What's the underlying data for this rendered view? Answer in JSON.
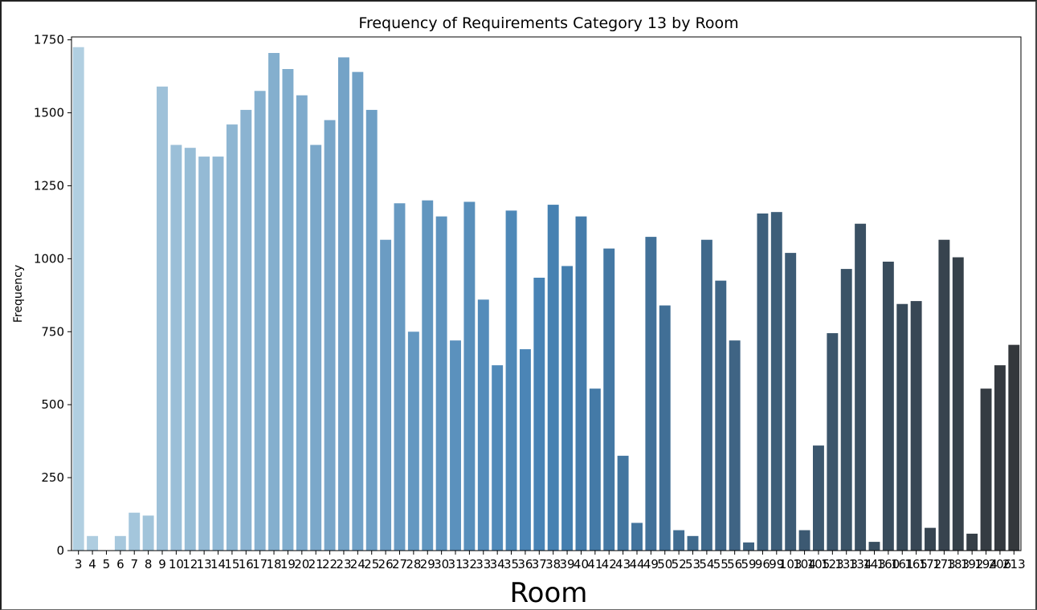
{
  "chart_data": {
    "type": "bar",
    "title": "Frequency of Requirements Category 13 by Room",
    "xlabel": "Room",
    "ylabel": "Frequency",
    "ylim": [
      0,
      1760
    ],
    "yticks": [
      0,
      250,
      500,
      750,
      1000,
      1250,
      1500,
      1750
    ],
    "grid": false,
    "palette": "Blues_d (light to dark)",
    "categories": [
      "3",
      "4",
      "5",
      "6",
      "7",
      "8",
      "9",
      "10",
      "12",
      "13",
      "14",
      "15",
      "16",
      "17",
      "18",
      "19",
      "20",
      "21",
      "22",
      "23",
      "24",
      "25",
      "26",
      "27",
      "28",
      "29",
      "30",
      "31",
      "32",
      "33",
      "34",
      "35",
      "36",
      "37",
      "38",
      "39",
      "40",
      "41",
      "42",
      "43",
      "44",
      "49",
      "50",
      "52",
      "53",
      "54",
      "55",
      "56",
      "59",
      "96",
      "99",
      "103",
      "104",
      "105",
      "123",
      "133",
      "134",
      "143",
      "160",
      "161",
      "165",
      "172",
      "173",
      "183",
      "192",
      "194",
      "206",
      "213"
    ],
    "values": [
      1725,
      50,
      0,
      50,
      130,
      120,
      1590,
      1390,
      1380,
      1350,
      1350,
      1460,
      1510,
      1575,
      1705,
      1650,
      1560,
      1390,
      1475,
      1690,
      1640,
      1510,
      1065,
      1190,
      750,
      1200,
      1145,
      720,
      1195,
      860,
      635,
      1165,
      690,
      935,
      1185,
      975,
      1145,
      555,
      1035,
      325,
      95,
      1075,
      840,
      70,
      50,
      1065,
      925,
      720,
      28,
      1155,
      1160,
      1020,
      70,
      360,
      745,
      965,
      1120,
      30,
      990,
      845,
      855,
      78,
      1065,
      1005,
      58,
      555,
      635,
      705
    ]
  }
}
